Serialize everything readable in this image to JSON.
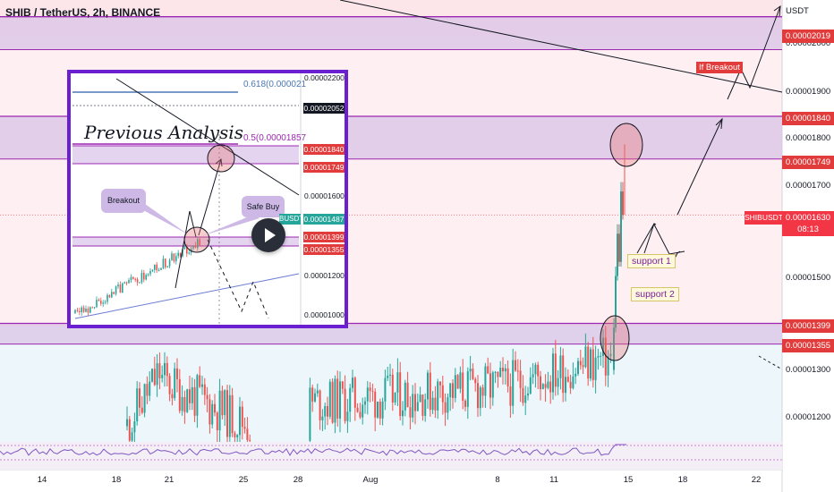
{
  "header": {
    "symbol_line": "SHIB / TetherUS, 2h, BINANCE"
  },
  "colors": {
    "up": "#26a69a",
    "down": "#ef5350",
    "zone": "#d9c3e6",
    "zone_line": "#9c27b0",
    "tag": "#e23b3b",
    "inset_border": "#6a1fd1"
  },
  "price_scale": {
    "unit": "USDT",
    "ticks": [
      "0.00002000",
      "0.00001900",
      "0.00001800",
      "0.00001700",
      "0.00001500",
      "0.00001300",
      "0.00001200"
    ],
    "tags": [
      "0.00002019",
      "0.00001840",
      "0.00001749",
      "0.00001399",
      "0.00001355"
    ],
    "current": {
      "symbol": "SHIBUSDT",
      "price": "0.00001630",
      "countdown": "08:13"
    }
  },
  "time_axis": {
    "labels": [
      "14",
      "18",
      "21",
      "25",
      "28",
      "Aug",
      "8",
      "11",
      "15",
      "18",
      "22"
    ]
  },
  "annotations": {
    "breakout": "If Breakout",
    "support1": "support 1",
    "support2": "support 2"
  },
  "inset": {
    "title": "Previous Analysis",
    "fib_618": "0.618(0.000021",
    "fib_05": "0.5(0.00001857",
    "breakout_bubble": "Breakout",
    "safe_buy_bubble": "Safe Buy",
    "ticks": [
      "0.00002200",
      "0.00001600",
      "0.00001200",
      "0.00001000"
    ],
    "tags": [
      {
        "label": "0.00002052",
        "style": "dark"
      },
      {
        "label": "0.00001840",
        "style": "red"
      },
      {
        "label": "0.00001749",
        "style": "red"
      },
      {
        "label": "0.00001487",
        "style": "green"
      },
      {
        "label": "0.00001399",
        "style": "red"
      },
      {
        "label": "0.00001355",
        "style": "red"
      }
    ],
    "symbol_fragment": "BUSDT"
  },
  "chart_data": {
    "type": "candlestick",
    "title": "SHIB / TetherUS, 2h, BINANCE",
    "ylabel": "USDT",
    "ylim": [
      1.12e-05,
      2.2e-05
    ],
    "x_tick_labels": [
      "14",
      "18",
      "21",
      "25",
      "28",
      "Aug",
      "8",
      "11",
      "15",
      "18",
      "22"
    ],
    "resistance_zones": [
      [
        1.982e-05,
        2.052e-05
      ],
      [
        1.749e-05,
        1.84e-05
      ],
      [
        1.355e-05,
        1.399e-05
      ]
    ],
    "last_price": 1.63e-05,
    "peak_price": 1.78e-05,
    "annotations": [
      "If Breakout",
      "support 1",
      "support 2"
    ]
  }
}
